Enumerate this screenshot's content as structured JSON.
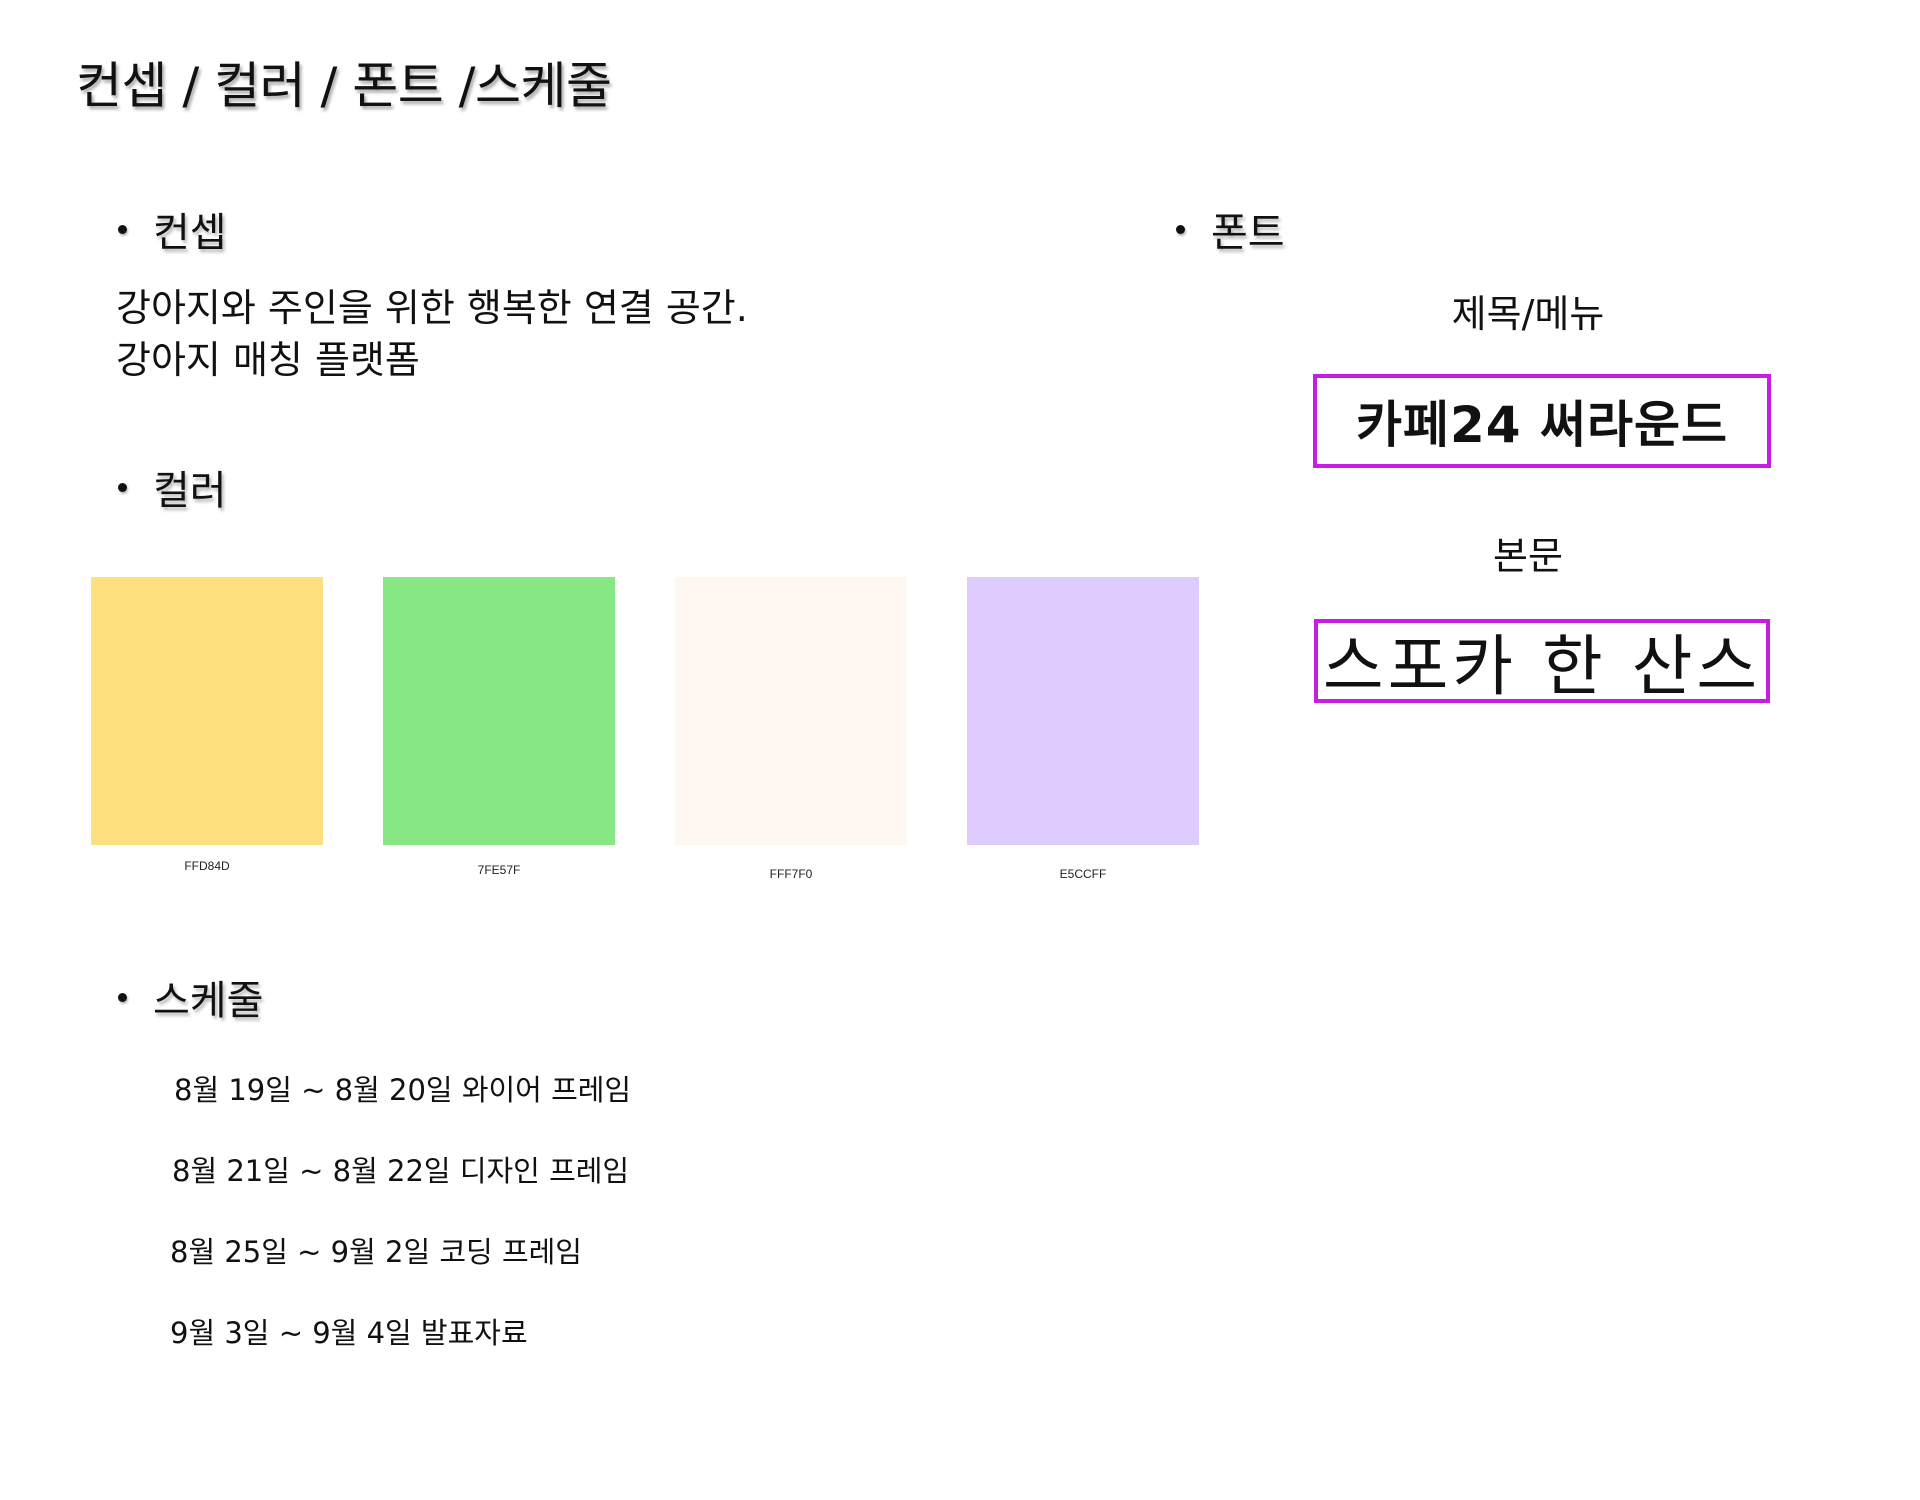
{
  "page_title": "컨셉 / 컬러 / 폰트 /스케줄",
  "concept": {
    "heading": "컨셉",
    "lines": [
      "강아지와 주인을 위한 행복한 연결 공간.",
      "강아지 매칭 플랫폼"
    ]
  },
  "color": {
    "heading": "컬러",
    "swatches": [
      {
        "hex": "#FFE081",
        "label": "FFD84D"
      },
      {
        "hex": "#88E785",
        "label": "7FE57F"
      },
      {
        "hex": "#FFF8F2",
        "label": "FFF7F0"
      },
      {
        "hex": "#DFCCFF",
        "label": "E5CCFF"
      }
    ]
  },
  "font": {
    "heading": "폰트",
    "title_label": "제목/메뉴",
    "title_font_sample": "카페24 써라운드",
    "body_label": "본문",
    "body_font_sample": "스포카 한 산스",
    "box_border_color": "#C51EE0"
  },
  "schedule": {
    "heading": "스케줄",
    "items": [
      "8월 19일 ~ 8월 20일 와이어 프레임",
      "8월 21일 ~ 8월 22일 디자인 프레임",
      "8월 25일 ~ 9월 2일 코딩 프레임",
      "9월 3일 ~ 9월 4일 발표자료"
    ]
  }
}
